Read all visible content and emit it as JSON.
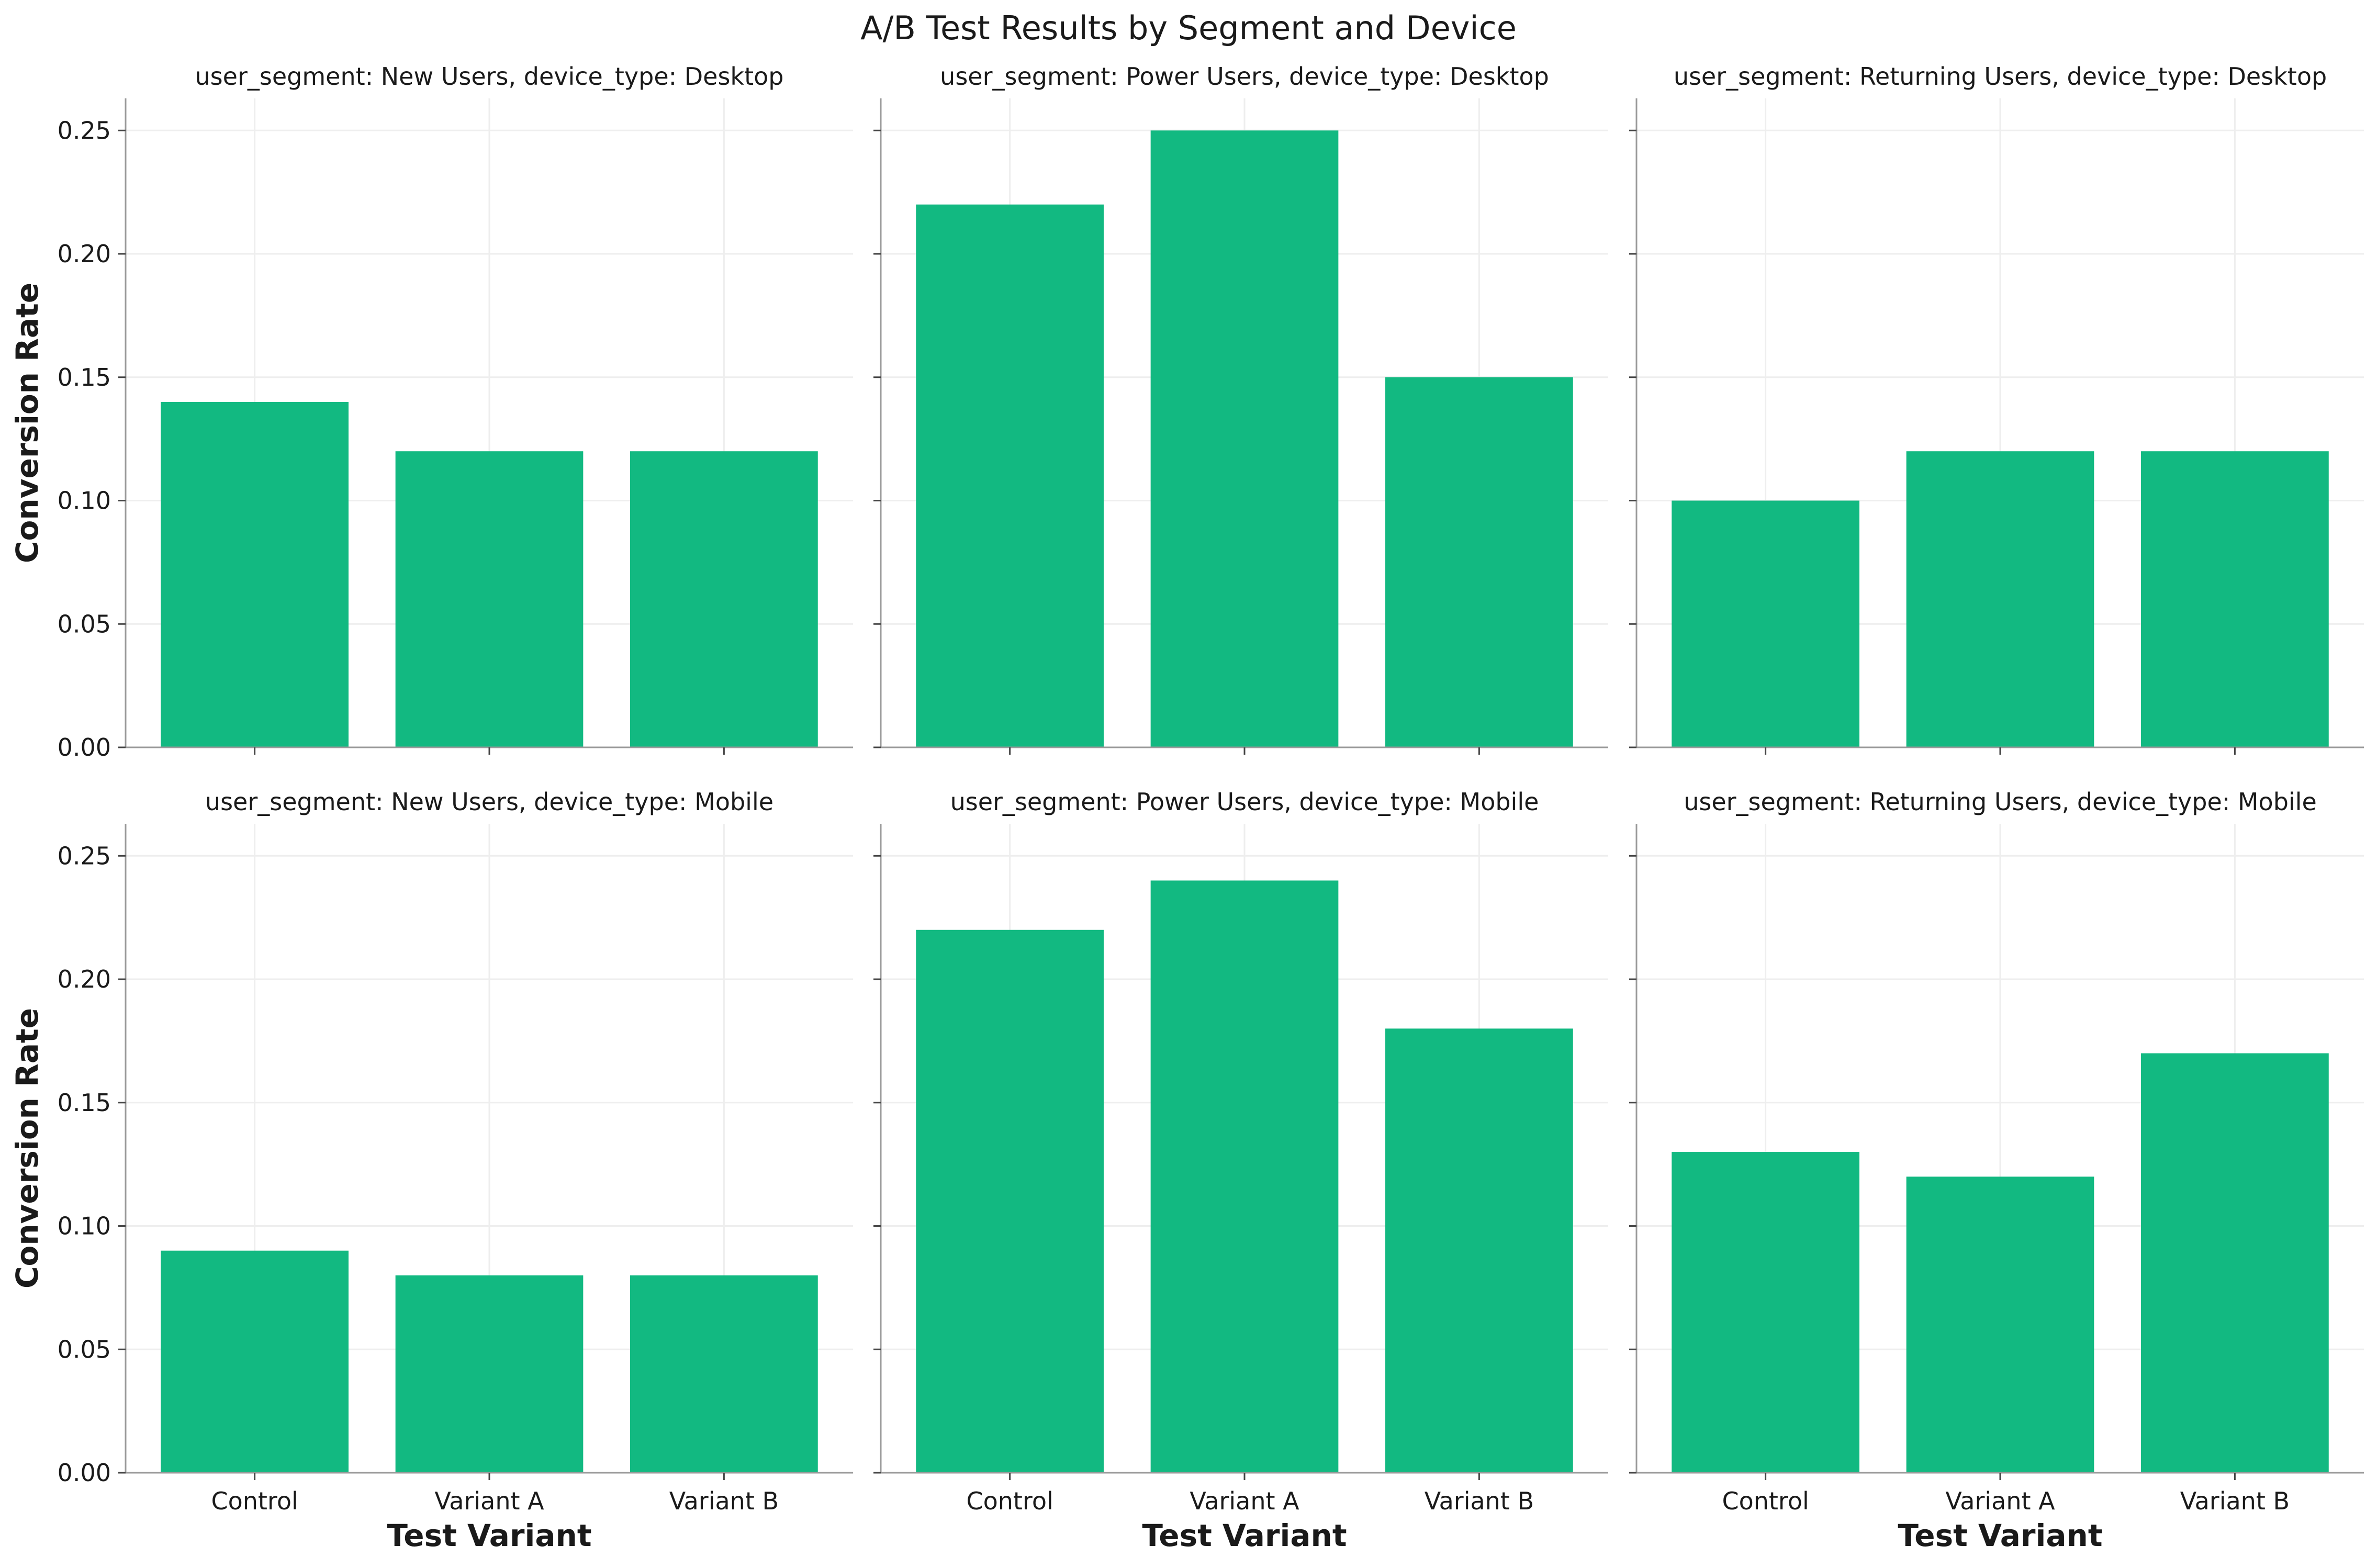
{
  "figure_title": "A/B Test Results by Segment and Device",
  "colors": {
    "bar": "#12b981",
    "axis": "#9a9a9a",
    "grid": "#eeeeee",
    "text": "#1a1a1a",
    "background": "#ffffff"
  },
  "chart_data": [
    {
      "type": "bar",
      "title": "user_segment: New Users, device_type: Desktop",
      "categories": [
        "Control",
        "Variant A",
        "Variant B"
      ],
      "values": [
        0.14,
        0.12,
        0.12
      ],
      "xlabel": "",
      "ylabel": "Conversion Rate",
      "ylim": [
        0,
        0.263
      ],
      "yticks": [
        "0.00",
        "0.05",
        "0.10",
        "0.15",
        "0.20",
        "0.25"
      ],
      "grid": true,
      "show_xticklabels": false
    },
    {
      "type": "bar",
      "title": "user_segment: Power Users, device_type: Desktop",
      "categories": [
        "Control",
        "Variant A",
        "Variant B"
      ],
      "values": [
        0.22,
        0.25,
        0.15
      ],
      "xlabel": "",
      "ylabel": "",
      "ylim": [
        0,
        0.263
      ],
      "yticks": [],
      "grid": true,
      "show_xticklabels": false
    },
    {
      "type": "bar",
      "title": "user_segment: Returning Users, device_type: Desktop",
      "categories": [
        "Control",
        "Variant A",
        "Variant B"
      ],
      "values": [
        0.1,
        0.12,
        0.12
      ],
      "xlabel": "",
      "ylabel": "",
      "ylim": [
        0,
        0.263
      ],
      "yticks": [],
      "grid": true,
      "show_xticklabels": false
    },
    {
      "type": "bar",
      "title": "user_segment: New Users, device_type: Mobile",
      "categories": [
        "Control",
        "Variant A",
        "Variant B"
      ],
      "values": [
        0.09,
        0.08,
        0.08
      ],
      "xlabel": "Test Variant",
      "ylabel": "Conversion Rate",
      "ylim": [
        0,
        0.263
      ],
      "yticks": [
        "0.00",
        "0.05",
        "0.10",
        "0.15",
        "0.20",
        "0.25"
      ],
      "grid": true,
      "show_xticklabels": true
    },
    {
      "type": "bar",
      "title": "user_segment: Power Users, device_type: Mobile",
      "categories": [
        "Control",
        "Variant A",
        "Variant B"
      ],
      "values": [
        0.22,
        0.24,
        0.18
      ],
      "xlabel": "Test Variant",
      "ylabel": "",
      "ylim": [
        0,
        0.263
      ],
      "yticks": [],
      "grid": true,
      "show_xticklabels": true
    },
    {
      "type": "bar",
      "title": "user_segment: Returning Users, device_type: Mobile",
      "categories": [
        "Control",
        "Variant A",
        "Variant B"
      ],
      "values": [
        0.13,
        0.12,
        0.17
      ],
      "xlabel": "Test Variant",
      "ylabel": "",
      "ylim": [
        0,
        0.263
      ],
      "yticks": [],
      "grid": true,
      "show_xticklabels": true
    }
  ]
}
